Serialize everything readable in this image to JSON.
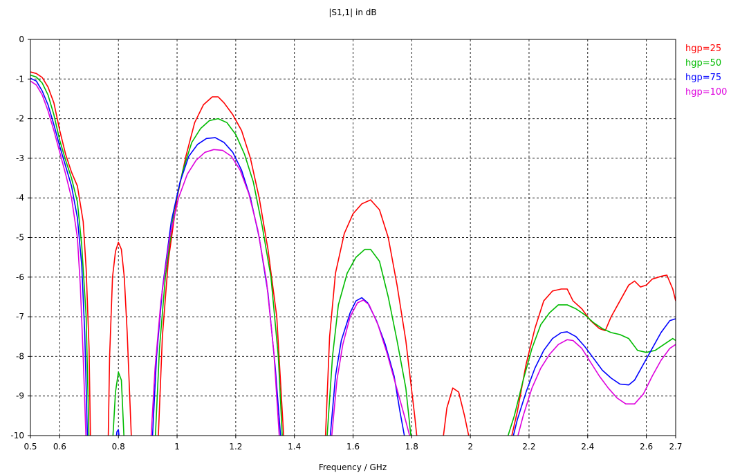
{
  "chart_data": {
    "type": "line",
    "title": "|S1,1| in dB",
    "xlabel": "Frequency / GHz",
    "ylabel": "",
    "xlim": [
      0.5,
      2.7
    ],
    "ylim": [
      -10,
      0
    ],
    "grid": true,
    "legend_position": "right",
    "x_ticks": [
      {
        "value": 0.5,
        "label": "0.5"
      },
      {
        "value": 0.6,
        "label": "0.6"
      },
      {
        "value": 0.8,
        "label": "0.8"
      },
      {
        "value": 1.0,
        "label": "1"
      },
      {
        "value": 1.2,
        "label": "1.2"
      },
      {
        "value": 1.4,
        "label": "1.4"
      },
      {
        "value": 1.6,
        "label": "1.6"
      },
      {
        "value": 1.8,
        "label": "1.8"
      },
      {
        "value": 2.0,
        "label": "2"
      },
      {
        "value": 2.2,
        "label": "2.2"
      },
      {
        "value": 2.4,
        "label": "2.4"
      },
      {
        "value": 2.6,
        "label": "2.6"
      },
      {
        "value": 2.7,
        "label": "2.7"
      }
    ],
    "y_ticks": [
      {
        "value": 0,
        "label": "0"
      },
      {
        "value": -1,
        "label": "-1"
      },
      {
        "value": -2,
        "label": "-2"
      },
      {
        "value": -3,
        "label": "-3"
      },
      {
        "value": -4,
        "label": "-4"
      },
      {
        "value": -5,
        "label": "-5"
      },
      {
        "value": -6,
        "label": "-6"
      },
      {
        "value": -7,
        "label": "-7"
      },
      {
        "value": -8,
        "label": "-8"
      },
      {
        "value": -9,
        "label": "-9"
      },
      {
        "value": -10,
        "label": "-10"
      }
    ],
    "series": [
      {
        "name": "hgp=25",
        "color": "#ff0000",
        "points": [
          [
            0.5,
            -0.82
          ],
          [
            0.52,
            -0.86
          ],
          [
            0.54,
            -0.96
          ],
          [
            0.56,
            -1.2
          ],
          [
            0.58,
            -1.6
          ],
          [
            0.6,
            -2.3
          ],
          [
            0.62,
            -2.9
          ],
          [
            0.64,
            -3.35
          ],
          [
            0.66,
            -3.7
          ],
          [
            0.68,
            -4.6
          ],
          [
            0.69,
            -5.8
          ],
          [
            0.7,
            -7.8
          ],
          [
            0.705,
            -10.2
          ],
          [
            0.765,
            -10.2
          ],
          [
            0.77,
            -8.0
          ],
          [
            0.78,
            -6.0
          ],
          [
            0.79,
            -5.35
          ],
          [
            0.8,
            -5.12
          ],
          [
            0.81,
            -5.3
          ],
          [
            0.82,
            -6.0
          ],
          [
            0.83,
            -7.4
          ],
          [
            0.845,
            -10.2
          ],
          [
            0.935,
            -10.2
          ],
          [
            0.95,
            -7.5
          ],
          [
            0.97,
            -5.6
          ],
          [
            1.0,
            -4.0
          ],
          [
            1.03,
            -2.95
          ],
          [
            1.06,
            -2.1
          ],
          [
            1.09,
            -1.65
          ],
          [
            1.12,
            -1.45
          ],
          [
            1.14,
            -1.45
          ],
          [
            1.16,
            -1.6
          ],
          [
            1.19,
            -1.9
          ],
          [
            1.22,
            -2.3
          ],
          [
            1.25,
            -3.0
          ],
          [
            1.28,
            -4.0
          ],
          [
            1.31,
            -5.3
          ],
          [
            1.34,
            -7.0
          ],
          [
            1.365,
            -10.2
          ],
          [
            1.505,
            -10.2
          ],
          [
            1.52,
            -7.5
          ],
          [
            1.54,
            -5.9
          ],
          [
            1.57,
            -4.9
          ],
          [
            1.6,
            -4.4
          ],
          [
            1.63,
            -4.15
          ],
          [
            1.66,
            -4.05
          ],
          [
            1.69,
            -4.3
          ],
          [
            1.72,
            -5.0
          ],
          [
            1.75,
            -6.2
          ],
          [
            1.78,
            -7.6
          ],
          [
            1.81,
            -9.5
          ],
          [
            1.82,
            -10.2
          ],
          [
            1.905,
            -10.2
          ],
          [
            1.92,
            -9.3
          ],
          [
            1.94,
            -8.8
          ],
          [
            1.96,
            -8.9
          ],
          [
            1.98,
            -9.5
          ],
          [
            2.0,
            -10.2
          ],
          [
            2.135,
            -10.2
          ],
          [
            2.16,
            -9.4
          ],
          [
            2.19,
            -8.2
          ],
          [
            2.22,
            -7.3
          ],
          [
            2.25,
            -6.6
          ],
          [
            2.28,
            -6.35
          ],
          [
            2.31,
            -6.3
          ],
          [
            2.33,
            -6.3
          ],
          [
            2.35,
            -6.6
          ],
          [
            2.38,
            -6.8
          ],
          [
            2.41,
            -7.1
          ],
          [
            2.44,
            -7.3
          ],
          [
            2.46,
            -7.35
          ],
          [
            2.48,
            -7.0
          ],
          [
            2.51,
            -6.6
          ],
          [
            2.54,
            -6.2
          ],
          [
            2.56,
            -6.1
          ],
          [
            2.58,
            -6.25
          ],
          [
            2.6,
            -6.2
          ],
          [
            2.62,
            -6.05
          ],
          [
            2.65,
            -5.98
          ],
          [
            2.67,
            -5.95
          ],
          [
            2.69,
            -6.3
          ],
          [
            2.7,
            -6.6
          ]
        ]
      },
      {
        "name": "hgp=50",
        "color": "#00bb00",
        "points": [
          [
            0.5,
            -0.9
          ],
          [
            0.52,
            -0.95
          ],
          [
            0.54,
            -1.1
          ],
          [
            0.56,
            -1.4
          ],
          [
            0.58,
            -1.9
          ],
          [
            0.6,
            -2.55
          ],
          [
            0.62,
            -3.05
          ],
          [
            0.64,
            -3.5
          ],
          [
            0.66,
            -4.1
          ],
          [
            0.675,
            -5.2
          ],
          [
            0.69,
            -7.0
          ],
          [
            0.7,
            -10.2
          ],
          [
            0.78,
            -10.2
          ],
          [
            0.79,
            -8.9
          ],
          [
            0.8,
            -8.4
          ],
          [
            0.81,
            -8.6
          ],
          [
            0.82,
            -10.2
          ],
          [
            0.925,
            -10.2
          ],
          [
            0.94,
            -7.8
          ],
          [
            0.96,
            -6.0
          ],
          [
            0.99,
            -4.3
          ],
          [
            1.02,
            -3.3
          ],
          [
            1.05,
            -2.6
          ],
          [
            1.08,
            -2.25
          ],
          [
            1.11,
            -2.05
          ],
          [
            1.14,
            -2.0
          ],
          [
            1.17,
            -2.1
          ],
          [
            1.2,
            -2.4
          ],
          [
            1.23,
            -2.9
          ],
          [
            1.26,
            -3.6
          ],
          [
            1.29,
            -4.7
          ],
          [
            1.32,
            -6.0
          ],
          [
            1.345,
            -8.0
          ],
          [
            1.36,
            -10.2
          ],
          [
            1.51,
            -10.2
          ],
          [
            1.53,
            -8.0
          ],
          [
            1.55,
            -6.7
          ],
          [
            1.58,
            -5.9
          ],
          [
            1.61,
            -5.5
          ],
          [
            1.64,
            -5.3
          ],
          [
            1.66,
            -5.3
          ],
          [
            1.69,
            -5.6
          ],
          [
            1.72,
            -6.5
          ],
          [
            1.75,
            -7.6
          ],
          [
            1.78,
            -8.8
          ],
          [
            1.8,
            -10.2
          ],
          [
            2.12,
            -10.2
          ],
          [
            2.15,
            -9.5
          ],
          [
            2.18,
            -8.6
          ],
          [
            2.21,
            -7.8
          ],
          [
            2.24,
            -7.2
          ],
          [
            2.27,
            -6.9
          ],
          [
            2.3,
            -6.7
          ],
          [
            2.33,
            -6.7
          ],
          [
            2.36,
            -6.8
          ],
          [
            2.39,
            -6.95
          ],
          [
            2.42,
            -7.15
          ],
          [
            2.45,
            -7.3
          ],
          [
            2.48,
            -7.4
          ],
          [
            2.51,
            -7.45
          ],
          [
            2.54,
            -7.55
          ],
          [
            2.57,
            -7.85
          ],
          [
            2.6,
            -7.9
          ],
          [
            2.63,
            -7.85
          ],
          [
            2.66,
            -7.7
          ],
          [
            2.69,
            -7.55
          ],
          [
            2.7,
            -7.6
          ]
        ]
      },
      {
        "name": "hgp=75",
        "color": "#0000ff",
        "points": [
          [
            0.5,
            -0.98
          ],
          [
            0.52,
            -1.05
          ],
          [
            0.54,
            -1.3
          ],
          [
            0.56,
            -1.65
          ],
          [
            0.58,
            -2.15
          ],
          [
            0.6,
            -2.7
          ],
          [
            0.62,
            -3.2
          ],
          [
            0.64,
            -3.7
          ],
          [
            0.66,
            -4.5
          ],
          [
            0.675,
            -5.7
          ],
          [
            0.685,
            -7.4
          ],
          [
            0.695,
            -10.2
          ],
          [
            0.79,
            -10.2
          ],
          [
            0.795,
            -9.9
          ],
          [
            0.8,
            -9.85
          ],
          [
            0.805,
            -10.2
          ],
          [
            0.915,
            -10.2
          ],
          [
            0.93,
            -8.0
          ],
          [
            0.95,
            -6.3
          ],
          [
            0.98,
            -4.6
          ],
          [
            1.01,
            -3.6
          ],
          [
            1.04,
            -2.95
          ],
          [
            1.07,
            -2.65
          ],
          [
            1.1,
            -2.5
          ],
          [
            1.13,
            -2.48
          ],
          [
            1.16,
            -2.6
          ],
          [
            1.19,
            -2.85
          ],
          [
            1.22,
            -3.3
          ],
          [
            1.25,
            -4.0
          ],
          [
            1.28,
            -5.0
          ],
          [
            1.31,
            -6.4
          ],
          [
            1.335,
            -8.3
          ],
          [
            1.355,
            -10.2
          ],
          [
            1.52,
            -10.2
          ],
          [
            1.54,
            -8.5
          ],
          [
            1.56,
            -7.6
          ],
          [
            1.59,
            -6.9
          ],
          [
            1.61,
            -6.6
          ],
          [
            1.63,
            -6.52
          ],
          [
            1.65,
            -6.65
          ],
          [
            1.68,
            -7.1
          ],
          [
            1.71,
            -7.7
          ],
          [
            1.74,
            -8.5
          ],
          [
            1.76,
            -9.4
          ],
          [
            1.78,
            -10.2
          ],
          [
            2.14,
            -10.2
          ],
          [
            2.16,
            -9.6
          ],
          [
            2.19,
            -8.9
          ],
          [
            2.22,
            -8.3
          ],
          [
            2.25,
            -7.85
          ],
          [
            2.28,
            -7.55
          ],
          [
            2.31,
            -7.4
          ],
          [
            2.33,
            -7.38
          ],
          [
            2.36,
            -7.5
          ],
          [
            2.39,
            -7.75
          ],
          [
            2.42,
            -8.05
          ],
          [
            2.45,
            -8.35
          ],
          [
            2.48,
            -8.55
          ],
          [
            2.51,
            -8.7
          ],
          [
            2.54,
            -8.72
          ],
          [
            2.56,
            -8.6
          ],
          [
            2.59,
            -8.2
          ],
          [
            2.62,
            -7.8
          ],
          [
            2.65,
            -7.4
          ],
          [
            2.68,
            -7.1
          ],
          [
            2.7,
            -7.05
          ]
        ]
      },
      {
        "name": "hgp=100",
        "color": "#dd00dd",
        "points": [
          [
            0.5,
            -1.05
          ],
          [
            0.52,
            -1.15
          ],
          [
            0.54,
            -1.4
          ],
          [
            0.56,
            -1.8
          ],
          [
            0.58,
            -2.3
          ],
          [
            0.6,
            -2.85
          ],
          [
            0.62,
            -3.4
          ],
          [
            0.64,
            -4.0
          ],
          [
            0.66,
            -5.0
          ],
          [
            0.67,
            -6.2
          ],
          [
            0.68,
            -8.0
          ],
          [
            0.69,
            -10.2
          ],
          [
            0.91,
            -10.2
          ],
          [
            0.925,
            -8.3
          ],
          [
            0.945,
            -6.6
          ],
          [
            0.975,
            -5.0
          ],
          [
            1.005,
            -4.0
          ],
          [
            1.035,
            -3.4
          ],
          [
            1.065,
            -3.05
          ],
          [
            1.095,
            -2.85
          ],
          [
            1.125,
            -2.78
          ],
          [
            1.155,
            -2.8
          ],
          [
            1.185,
            -2.95
          ],
          [
            1.215,
            -3.3
          ],
          [
            1.245,
            -3.9
          ],
          [
            1.275,
            -4.8
          ],
          [
            1.305,
            -6.1
          ],
          [
            1.33,
            -7.9
          ],
          [
            1.35,
            -10.2
          ],
          [
            1.525,
            -10.2
          ],
          [
            1.545,
            -8.6
          ],
          [
            1.565,
            -7.7
          ],
          [
            1.59,
            -7.0
          ],
          [
            1.615,
            -6.65
          ],
          [
            1.635,
            -6.58
          ],
          [
            1.655,
            -6.7
          ],
          [
            1.685,
            -7.2
          ],
          [
            1.715,
            -7.9
          ],
          [
            1.745,
            -8.7
          ],
          [
            1.775,
            -9.5
          ],
          [
            1.8,
            -10.2
          ],
          [
            2.155,
            -10.2
          ],
          [
            2.18,
            -9.5
          ],
          [
            2.21,
            -8.8
          ],
          [
            2.24,
            -8.3
          ],
          [
            2.27,
            -7.95
          ],
          [
            2.3,
            -7.7
          ],
          [
            2.33,
            -7.58
          ],
          [
            2.35,
            -7.6
          ],
          [
            2.38,
            -7.8
          ],
          [
            2.41,
            -8.15
          ],
          [
            2.44,
            -8.5
          ],
          [
            2.47,
            -8.8
          ],
          [
            2.5,
            -9.05
          ],
          [
            2.53,
            -9.2
          ],
          [
            2.56,
            -9.2
          ],
          [
            2.59,
            -8.95
          ],
          [
            2.62,
            -8.5
          ],
          [
            2.65,
            -8.1
          ],
          [
            2.68,
            -7.8
          ],
          [
            2.7,
            -7.7
          ]
        ]
      }
    ]
  }
}
